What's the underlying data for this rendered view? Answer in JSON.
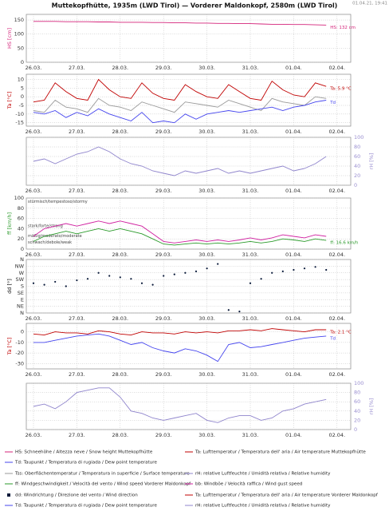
{
  "header": {
    "title": "Muttekopfhütte, 1935m (LWD Tirol) — Vorderer Maldonkopf, 2580m (LWD Tirol)",
    "timestamp": "01.04.21, 19:41"
  },
  "chart_data": [
    {
      "type": "line",
      "ylabel": "HS [cm]",
      "ylabel_color": "#d4237a",
      "yaxis": "left",
      "ylim": [
        0,
        170
      ],
      "yticks": [
        0,
        50,
        100,
        150
      ],
      "grid": true,
      "categories": [
        "26.03.",
        null,
        null,
        null,
        "27.03.",
        null,
        null,
        null,
        "28.03.",
        null,
        null,
        null,
        "29.03.",
        null,
        null,
        null,
        "30.03.",
        null,
        null,
        null,
        "31.03.",
        null,
        null,
        null,
        "01.04.",
        null,
        null,
        null,
        "02.04."
      ],
      "series": [
        {
          "name": "HS: Schneehöhe / Altezza neve / Snow height  Muttekopfhütte",
          "color": "#d4237a",
          "end_label": "HS: 132 cm",
          "values": [
            145,
            145,
            145,
            144,
            144,
            144,
            143,
            143,
            142,
            142,
            142,
            141,
            141,
            140,
            140,
            139,
            139,
            138,
            138,
            137,
            137,
            136,
            135,
            135,
            134,
            134,
            133,
            132,
            null
          ]
        }
      ]
    },
    {
      "type": "line",
      "ylabel": "Ta [°C]",
      "ylabel_color": "#c00000",
      "yaxis": "left",
      "ylim": [
        -17,
        13
      ],
      "yticks": [
        -15,
        -10,
        -5,
        0,
        5,
        10
      ],
      "grid": true,
      "categories": [
        "26.03.",
        null,
        null,
        null,
        "27.03.",
        null,
        null,
        null,
        "28.03.",
        null,
        null,
        null,
        "29.03.",
        null,
        null,
        null,
        "30.03.",
        null,
        null,
        null,
        "31.03.",
        null,
        null,
        null,
        "01.04.",
        null,
        null,
        null,
        "02.04."
      ],
      "series": [
        {
          "name": "Ta: Lufttemperatur / Temperatura dell' aria / Air temperature  Muttekopfhütte",
          "color": "#c00000",
          "end_label": "Ta: 5.9 °C",
          "values": [
            -3,
            -2,
            8,
            3,
            -1,
            -2,
            10,
            4,
            0,
            -1,
            8,
            2,
            -1,
            -2,
            7,
            3,
            0,
            -1,
            7,
            3,
            -1,
            -2,
            9,
            4,
            1,
            0,
            8,
            6,
            null
          ]
        },
        {
          "name": "Tss: Oberflächentemperatur / Temperatura in superficie / Surface temperature",
          "color": "#999999",
          "values": [
            -8,
            -9,
            -2,
            -6,
            -7,
            -9,
            -1,
            -5,
            -6,
            -8,
            -3,
            -5,
            -7,
            -9,
            -3,
            -4,
            -5,
            -6,
            -2,
            -4,
            -6,
            -8,
            -1,
            -3,
            -4,
            -5,
            0,
            -1,
            null
          ]
        },
        {
          "name": "Td: Taupunkt / Temperatura di rugiada / Dew point temperature",
          "color": "#4444ee",
          "end_label": "Td",
          "values": [
            -9,
            -10,
            -8,
            -12,
            -9,
            -11,
            -7,
            -10,
            -12,
            -14,
            -9,
            -15,
            -14,
            -15,
            -10,
            -13,
            -10,
            -9,
            -8,
            -9,
            -8,
            -7,
            -6,
            -8,
            -6,
            -5,
            -3,
            -2,
            null
          ]
        }
      ]
    },
    {
      "type": "line",
      "ylabel": "rH [%]",
      "ylabel_color": "#9a8fd0",
      "yaxis": "right",
      "ylim": [
        0,
        100
      ],
      "yticks": [
        0,
        20,
        40,
        60,
        80,
        100
      ],
      "grid": true,
      "categories": [
        "26.03.",
        null,
        null,
        null,
        "27.03.",
        null,
        null,
        null,
        "28.03.",
        null,
        null,
        null,
        "29.03.",
        null,
        null,
        null,
        "30.03.",
        null,
        null,
        null,
        "31.03.",
        null,
        null,
        null,
        "01.04.",
        null,
        null,
        null,
        "02.04."
      ],
      "series": [
        {
          "name": "rH: relative Luftfeuchte / Umidità relativa / Relative humidity",
          "color": "#8f84cc",
          "values": [
            50,
            55,
            45,
            55,
            65,
            70,
            80,
            70,
            55,
            45,
            40,
            30,
            25,
            20,
            30,
            25,
            30,
            35,
            25,
            30,
            25,
            30,
            35,
            40,
            30,
            35,
            45,
            60,
            null
          ]
        }
      ]
    },
    {
      "type": "line",
      "ylabel": "ff [km/h]",
      "ylabel_color": "#2a9a2a",
      "yaxis": "left",
      "ylim": [
        0,
        100
      ],
      "yticks": [
        0,
        20,
        40,
        60,
        80,
        100
      ],
      "grid": true,
      "bands": [
        "stürmisch/tempestoso/stormy",
        "stark/forte/strong",
        "mäßig/moderato/moderate",
        "schwach/debole/weak"
      ],
      "categories": [
        "26.03.",
        null,
        null,
        null,
        "27.03.",
        null,
        null,
        null,
        "28.03.",
        null,
        null,
        null,
        "29.03.",
        null,
        null,
        null,
        "30.03.",
        null,
        null,
        null,
        "31.03.",
        null,
        null,
        null,
        "01.04.",
        null,
        null,
        null,
        "02.04."
      ],
      "series": [
        {
          "name": "bb: Windböe / Velocità raffica / Wind gust speed",
          "color": "#d020a0",
          "values": [
            25,
            40,
            45,
            50,
            45,
            50,
            55,
            50,
            55,
            50,
            45,
            30,
            15,
            12,
            15,
            18,
            15,
            18,
            15,
            18,
            22,
            18,
            22,
            28,
            25,
            22,
            28,
            25,
            null
          ]
        },
        {
          "name": "ff: Windgeschwindigkeit / Velocità del vento / Wind speed  Vorderer Maldonkopf",
          "color": "#2a9a2a",
          "end_label": "ff: 16.6 km/h",
          "values": [
            15,
            25,
            30,
            35,
            30,
            35,
            40,
            35,
            40,
            35,
            30,
            20,
            10,
            8,
            10,
            12,
            10,
            12,
            10,
            12,
            15,
            12,
            15,
            20,
            18,
            15,
            20,
            17,
            null
          ]
        }
      ]
    },
    {
      "type": "scatter",
      "ylabel": "dd [°]",
      "ylabel_color": "#000000",
      "yaxis": "left",
      "ylim": [
        0,
        360
      ],
      "grid": true,
      "yticks": [
        {
          "value": 360,
          "label": "N"
        },
        {
          "value": 315,
          "label": "NW"
        },
        {
          "value": 270,
          "label": "W"
        },
        {
          "value": 225,
          "label": "SW"
        },
        {
          "value": 180,
          "label": "S"
        },
        {
          "value": 135,
          "label": "SE"
        },
        {
          "value": 90,
          "label": "E"
        },
        {
          "value": 45,
          "label": "NE"
        },
        {
          "value": 0,
          "label": "N"
        }
      ],
      "categories": [
        "26.03.",
        null,
        null,
        null,
        "27.03.",
        null,
        null,
        null,
        "28.03.",
        null,
        null,
        null,
        "29.03.",
        null,
        null,
        null,
        "30.03.",
        null,
        null,
        null,
        "31.03.",
        null,
        null,
        null,
        "01.04.",
        null,
        null,
        null,
        "02.04."
      ],
      "series": [
        {
          "name": "dd: Windrichtung / Direzione del vento / Wind direction",
          "color": "#0a1a3a",
          "values": [
            200,
            190,
            210,
            180,
            220,
            230,
            270,
            250,
            240,
            230,
            200,
            190,
            250,
            260,
            270,
            280,
            300,
            330,
            20,
            10,
            200,
            230,
            270,
            280,
            290,
            300,
            310,
            290,
            null
          ]
        }
      ]
    },
    {
      "type": "line",
      "ylabel": "Ta [°C]",
      "ylabel_color": "#c00000",
      "yaxis": "left",
      "ylim": [
        -35,
        8
      ],
      "yticks": [
        -30,
        -20,
        -10,
        0
      ],
      "grid": true,
      "categories": [
        "26.03.",
        null,
        null,
        null,
        "27.03.",
        null,
        null,
        null,
        "28.03.",
        null,
        null,
        null,
        "29.03.",
        null,
        null,
        null,
        "30.03.",
        null,
        null,
        null,
        "31.03.",
        null,
        null,
        null,
        "01.04.",
        null,
        null,
        null,
        "02.04."
      ],
      "series": [
        {
          "name": "Ta: Lufttemperatur / Temperatura dell' aria / Air temperature  Vorderer Maldonkopf",
          "color": "#c00000",
          "end_label": "Ta: 2.1 °C",
          "values": [
            -2,
            -3,
            0,
            -1,
            -1,
            -2,
            1,
            0,
            -2,
            -3,
            0,
            -1,
            -1,
            -2,
            0,
            -1,
            0,
            -1,
            1,
            1,
            2,
            1,
            3,
            2,
            1,
            0,
            2,
            2,
            null
          ]
        },
        {
          "name": "Td: Taupunkt / Temperatura di rugiada / Dew point temperature",
          "color": "#4444ee",
          "end_label": "Td",
          "values": [
            -10,
            -10,
            -8,
            -6,
            -4,
            -3,
            -2,
            -4,
            -8,
            -12,
            -10,
            -15,
            -18,
            -20,
            -16,
            -18,
            -22,
            -28,
            -12,
            -10,
            -15,
            -14,
            -12,
            -10,
            -8,
            -6,
            -5,
            -4,
            null
          ]
        }
      ]
    },
    {
      "type": "line",
      "ylabel": "rH [%]",
      "ylabel_color": "#9a8fd0",
      "yaxis": "right",
      "ylim": [
        0,
        100
      ],
      "yticks": [
        0,
        20,
        40,
        60,
        80,
        100
      ],
      "grid": true,
      "categories": [
        "26.03.",
        null,
        null,
        null,
        "27.03.",
        null,
        null,
        null,
        "28.03.",
        null,
        null,
        null,
        "29.03.",
        null,
        null,
        null,
        "30.03.",
        null,
        null,
        null,
        "31.03.",
        null,
        null,
        null,
        "01.04.",
        null,
        null,
        null,
        "02.04."
      ],
      "series": [
        {
          "name": "rH: relative Luftfeuchte / Umidità relativa / Relative humidity",
          "color": "#8f84cc",
          "values": [
            50,
            55,
            45,
            60,
            80,
            85,
            90,
            90,
            70,
            40,
            35,
            25,
            20,
            25,
            30,
            35,
            20,
            15,
            25,
            30,
            30,
            20,
            25,
            40,
            45,
            55,
            60,
            65,
            null
          ]
        }
      ]
    }
  ]
}
